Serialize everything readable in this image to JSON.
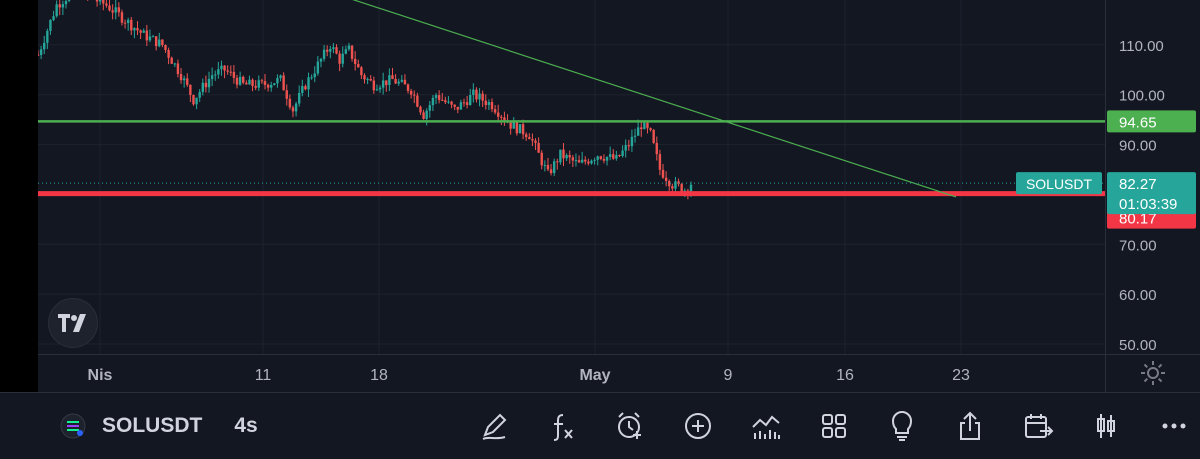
{
  "chart_data": {
    "type": "candlestick",
    "symbol": "SOLUSDT",
    "interval": "4s",
    "ylim": [
      48,
      119
    ],
    "y_ticks": [
      "110.00",
      "100.00",
      "90.00",
      "80.00",
      "70.00",
      "60.00",
      "50.00"
    ],
    "x_ticks": [
      "Nis",
      "11",
      "18",
      "May",
      "9",
      "16",
      "23"
    ],
    "price_label": {
      "symbol": "SOLUSDT",
      "value": "82.27",
      "countdown": "01:03:39"
    },
    "levels": [
      {
        "value": "94.65",
        "color": "#4caf50"
      },
      {
        "value": "80.17",
        "color": "#f23645"
      }
    ],
    "trendline": {
      "from": {
        "date": "Nis 02",
        "price": 124
      },
      "to": {
        "date": "May 22",
        "price": 79.5
      }
    },
    "price_path": [
      {
        "t": 0,
        "p": 108
      },
      {
        "t": 3,
        "p": 113
      },
      {
        "t": 6,
        "p": 118
      },
      {
        "t": 12,
        "p": 121
      },
      {
        "t": 22,
        "p": 118
      },
      {
        "t": 28,
        "p": 115
      },
      {
        "t": 34,
        "p": 112
      },
      {
        "t": 40,
        "p": 110
      },
      {
        "t": 46,
        "p": 104
      },
      {
        "t": 50,
        "p": 99
      },
      {
        "t": 56,
        "p": 104
      },
      {
        "t": 60,
        "p": 105
      },
      {
        "t": 66,
        "p": 102
      },
      {
        "t": 72,
        "p": 102
      },
      {
        "t": 78,
        "p": 103
      },
      {
        "t": 82,
        "p": 97
      },
      {
        "t": 86,
        "p": 102
      },
      {
        "t": 90,
        "p": 106
      },
      {
        "t": 94,
        "p": 110
      },
      {
        "t": 97,
        "p": 107
      },
      {
        "t": 100,
        "p": 109
      },
      {
        "t": 104,
        "p": 104
      },
      {
        "t": 108,
        "p": 102
      },
      {
        "t": 114,
        "p": 103
      },
      {
        "t": 120,
        "p": 101
      },
      {
        "t": 124,
        "p": 96
      },
      {
        "t": 128,
        "p": 100
      },
      {
        "t": 134,
        "p": 97
      },
      {
        "t": 140,
        "p": 100
      },
      {
        "t": 146,
        "p": 98
      },
      {
        "t": 152,
        "p": 94
      },
      {
        "t": 158,
        "p": 92
      },
      {
        "t": 164,
        "p": 84
      },
      {
        "t": 168,
        "p": 88
      },
      {
        "t": 174,
        "p": 86
      },
      {
        "t": 180,
        "p": 88
      },
      {
        "t": 186,
        "p": 87
      },
      {
        "t": 190,
        "p": 90
      },
      {
        "t": 194,
        "p": 94
      },
      {
        "t": 197,
        "p": 92
      },
      {
        "t": 200,
        "p": 85
      },
      {
        "t": 204,
        "p": 82
      },
      {
        "t": 208,
        "p": 81
      },
      {
        "t": 210,
        "p": 82.27
      }
    ]
  },
  "toolbar": {
    "symbol": "SOLUSDT",
    "interval": "4s",
    "icons": [
      "drawing-icon",
      "indicators-icon",
      "alert-icon",
      "add-icon",
      "compare-icon",
      "layouts-icon",
      "ideas-icon",
      "share-icon",
      "replay-icon",
      "chart-type-icon",
      "more-icon"
    ]
  }
}
